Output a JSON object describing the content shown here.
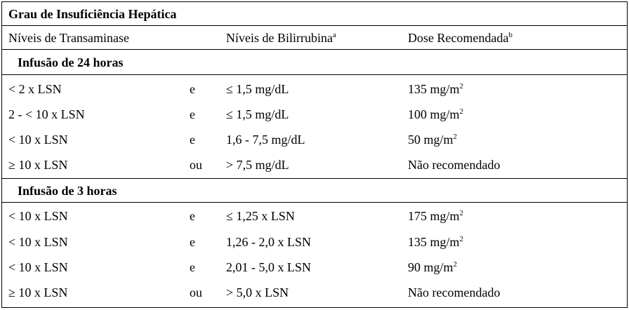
{
  "table": {
    "title": "Grau de Insuficiência Hepática",
    "headers": {
      "col1": "Níveis de Transaminase",
      "col3": "Níveis de Bilirrubina",
      "col3_sup": "a",
      "col4": "Dose Recomendada",
      "col4_sup": "b"
    },
    "sections": [
      {
        "label": "Infusão de 24 horas",
        "rows": [
          {
            "transaminase": "< 2 x LSN",
            "conj": "e",
            "bilirrubina": "≤ 1,5 mg/dL",
            "dose": "135 mg/m",
            "dose_sup": "2"
          },
          {
            "transaminase": "2 - < 10 x LSN",
            "conj": "e",
            "bilirrubina": "≤ 1,5 mg/dL",
            "dose": "100 mg/m",
            "dose_sup": "2"
          },
          {
            "transaminase": "< 10 x LSN",
            "conj": "e",
            "bilirrubina": "1,6 - 7,5 mg/dL",
            "dose": "50 mg/m",
            "dose_sup": "2"
          },
          {
            "transaminase": "≥ 10 x LSN",
            "conj": "ou",
            "bilirrubina": "> 7,5 mg/dL",
            "dose": "Não recomendado",
            "dose_sup": ""
          }
        ]
      },
      {
        "label": "Infusão de 3 horas",
        "rows": [
          {
            "transaminase": "< 10 x LSN",
            "conj": "e",
            "bilirrubina": "≤ 1,25 x LSN",
            "dose": "175 mg/m",
            "dose_sup": "2"
          },
          {
            "transaminase": "< 10 x LSN",
            "conj": "e",
            "bilirrubina": "1,26 - 2,0 x LSN",
            "dose": "135 mg/m",
            "dose_sup": "2"
          },
          {
            "transaminase": "< 10 x LSN",
            "conj": "e",
            "bilirrubina": "2,01 - 5,0 x LSN",
            "dose": "90 mg/m",
            "dose_sup": "2"
          },
          {
            "transaminase": "≥ 10 x LSN",
            "conj": "ou",
            "bilirrubina": "> 5,0 x LSN",
            "dose": "Não recomendado",
            "dose_sup": ""
          }
        ]
      }
    ]
  }
}
